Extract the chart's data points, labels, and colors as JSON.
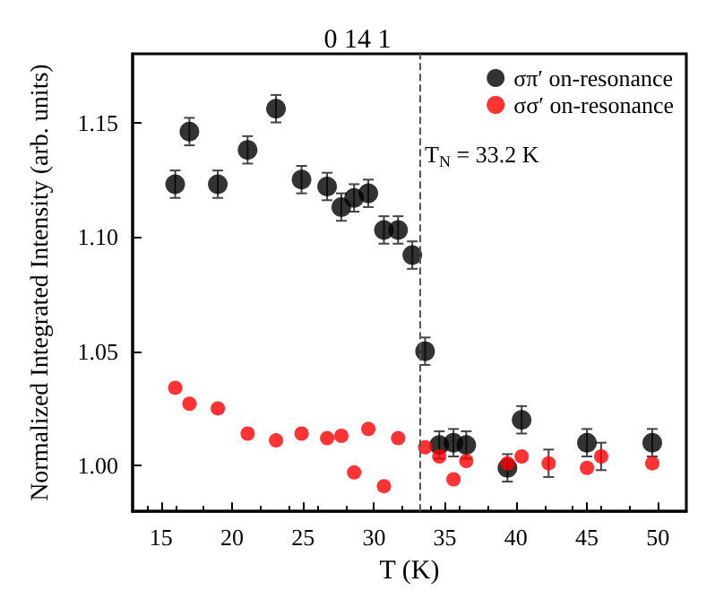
{
  "chart_data": {
    "type": "scatter",
    "title": "0 14 1",
    "xlabel": "T (K)",
    "ylabel": "Normalized Integrated Intensity (arb. units)",
    "xlim": [
      13,
      52
    ],
    "xticks": [
      15,
      20,
      25,
      30,
      35,
      40,
      45,
      50
    ],
    "ylim": [
      0.98,
      1.18
    ],
    "yticks": [
      {
        "value": 1,
        "label": "1.00"
      },
      {
        "value": 1.05,
        "label": "1.05"
      },
      {
        "value": 1.1,
        "label": "1.10"
      },
      {
        "value": 1.15,
        "label": "1.15"
      }
    ],
    "grid": false,
    "legend": "top right",
    "marker": "circle",
    "series": [
      {
        "name": "σπ′ on-resonance",
        "color": "#000000",
        "x": [
          16.0,
          17.0,
          19.0,
          21.1,
          23.1,
          24.9,
          26.7,
          27.7,
          28.6,
          29.6,
          30.7,
          31.7,
          32.7,
          33.6,
          34.6,
          35.6,
          36.5,
          39.4,
          40.4,
          45.0,
          49.6
        ],
        "values": [
          1.123,
          1.146,
          1.123,
          1.138,
          1.156,
          1.125,
          1.122,
          1.113,
          1.117,
          1.119,
          1.103,
          1.103,
          1.092,
          1.05,
          1.009,
          1.01,
          1.009,
          0.999,
          1.02,
          1.01,
          1.01
        ],
        "errors": [
          0.006,
          0.006,
          0.006,
          0.006,
          0.006,
          0.006,
          0.006,
          0.006,
          0.006,
          0.006,
          0.006,
          0.006,
          0.006,
          0.006,
          0.006,
          0.006,
          0.006,
          0.006,
          0.006,
          0.006,
          0.006
        ]
      },
      {
        "name": "σσ′ on-resonance",
        "color": "#ff0000",
        "x": [
          16.0,
          17.0,
          19.0,
          21.1,
          23.1,
          24.9,
          26.7,
          27.7,
          28.6,
          29.6,
          30.7,
          31.7,
          33.6,
          34.6,
          35.6,
          36.5,
          39.4,
          40.4,
          42.3,
          45.0,
          46.0,
          49.6
        ],
        "values": [
          1.034,
          1.027,
          1.025,
          1.014,
          1.011,
          1.014,
          1.012,
          1.013,
          0.997,
          1.016,
          0.991,
          1.012,
          1.008,
          1.004,
          0.994,
          1.002,
          1.001,
          1.004,
          1.001,
          0.999,
          1.004,
          1.001
        ],
        "errors": [
          null,
          null,
          null,
          null,
          null,
          null,
          null,
          null,
          null,
          null,
          null,
          null,
          null,
          null,
          null,
          null,
          null,
          null,
          0.006,
          null,
          0.006,
          null
        ]
      }
    ],
    "ref_lines": [
      {
        "axis": "x",
        "value": 33.2,
        "label": "T$_{N}$ = 33.2 K",
        "color": "#555555",
        "line_style": "dashed"
      }
    ]
  }
}
